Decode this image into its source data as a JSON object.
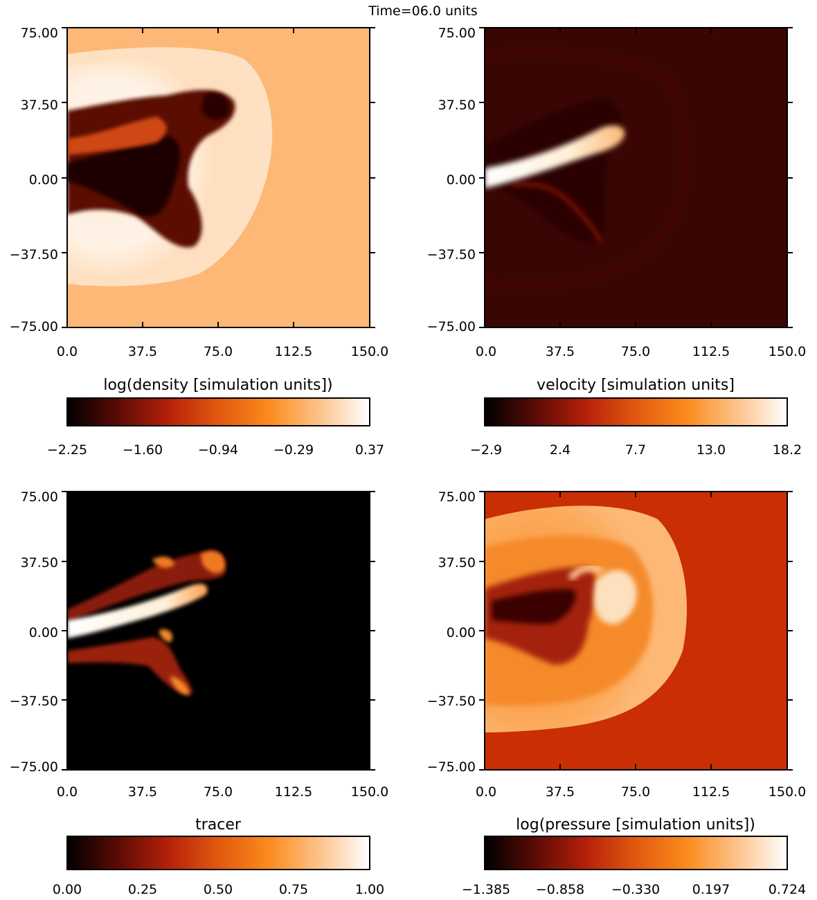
{
  "figure": {
    "title": "Time=06.0 units"
  },
  "chart_data": [
    {
      "type": "heatmap",
      "field": "density",
      "xlim": [
        0.0,
        150.0
      ],
      "ylim": [
        -75.0,
        75.0
      ],
      "x_ticks": [
        "0.0",
        "37.5",
        "75.0",
        "112.5",
        "150.0"
      ],
      "y_ticks": [
        "75.00",
        "37.50",
        "0.00",
        "−37.50",
        "−75.00"
      ],
      "colorbar": {
        "label": "log(density [simulation units])",
        "range": [
          -2.25,
          0.37
        ],
        "ticks": [
          "−2.25",
          "−1.60",
          "−0.94",
          "−0.29",
          "0.37"
        ]
      },
      "background_color": "#fdb877"
    },
    {
      "type": "heatmap",
      "field": "velocity",
      "xlim": [
        0.0,
        150.0
      ],
      "ylim": [
        -75.0,
        75.0
      ],
      "x_ticks": [
        "0.0",
        "37.5",
        "75.0",
        "112.5",
        "150.0"
      ],
      "y_ticks": [
        "75.00",
        "37.50",
        "0.00",
        "−37.50",
        "−75.00"
      ],
      "colorbar": {
        "label": "velocity [simulation units]",
        "range": [
          -2.9,
          18.2
        ],
        "ticks": [
          "−2.9",
          "2.4",
          "7.7",
          "13.0",
          "18.2"
        ]
      },
      "background_color": "#3a0604"
    },
    {
      "type": "heatmap",
      "field": "tracer",
      "xlim": [
        0.0,
        150.0
      ],
      "ylim": [
        -75.0,
        75.0
      ],
      "x_ticks": [
        "0.0",
        "37.5",
        "75.0",
        "112.5",
        "150.0"
      ],
      "y_ticks": [
        "75.00",
        "37.50",
        "0.00",
        "−37.50",
        "−75.00"
      ],
      "colorbar": {
        "label": "tracer",
        "range": [
          0.0,
          1.0
        ],
        "ticks": [
          "0.00",
          "0.25",
          "0.50",
          "0.75",
          "1.00"
        ]
      },
      "background_color": "#000000"
    },
    {
      "type": "heatmap",
      "field": "pressure",
      "xlim": [
        0.0,
        150.0
      ],
      "ylim": [
        -75.0,
        75.0
      ],
      "x_ticks": [
        "0.0",
        "37.5",
        "75.0",
        "112.5",
        "150.0"
      ],
      "y_ticks": [
        "75.00",
        "37.50",
        "0.00",
        "−37.50",
        "−75.00"
      ],
      "colorbar": {
        "label": "log(pressure [simulation units])",
        "range": [
          -1.385,
          0.724
        ],
        "ticks": [
          "−1.385",
          "−0.858",
          "−0.330",
          "0.197",
          "0.724"
        ]
      },
      "background_color": "#c92e05"
    }
  ],
  "colormap": {
    "name": "heat",
    "stops": [
      "#000000",
      "#5a0b05",
      "#b5200a",
      "#e2580f",
      "#fb8b1c",
      "#fdc38a",
      "#ffffff"
    ]
  }
}
